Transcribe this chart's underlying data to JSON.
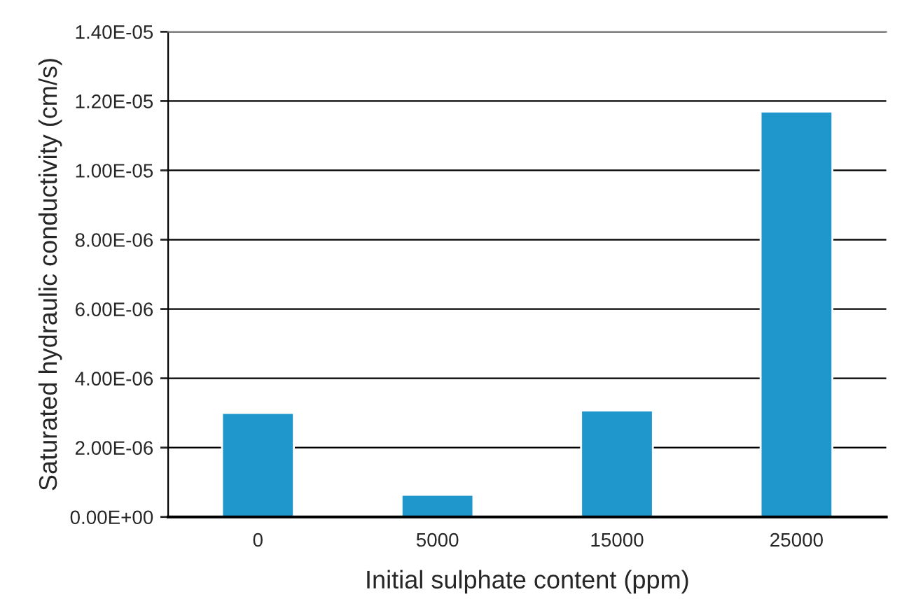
{
  "chart_data": {
    "type": "bar",
    "xlabel": "Initial sulphate content (ppm)",
    "ylabel": "Saturated hydraulic conductivity (cm/s)",
    "categories": [
      "0",
      "5000",
      "15000",
      "25000"
    ],
    "values": [
      3e-06,
      6.4e-07,
      3.07e-06,
      1.17e-05
    ],
    "color": "#2097cc",
    "ylim": [
      0,
      1.4e-05
    ],
    "yticks": [
      {
        "value": 0,
        "label": "0.00E+00"
      },
      {
        "value": 2e-06,
        "label": "2.00E-06"
      },
      {
        "value": 4e-06,
        "label": "4.00E-06"
      },
      {
        "value": 6e-06,
        "label": "6.00E-06"
      },
      {
        "value": 8e-06,
        "label": "8.00E-06"
      },
      {
        "value": 1e-05,
        "label": "1.00E-05"
      },
      {
        "value": 1.2e-05,
        "label": "1.20E-05"
      },
      {
        "value": 1.4e-05,
        "label": "1.40E-05"
      }
    ],
    "grid": "y",
    "legend": false
  }
}
